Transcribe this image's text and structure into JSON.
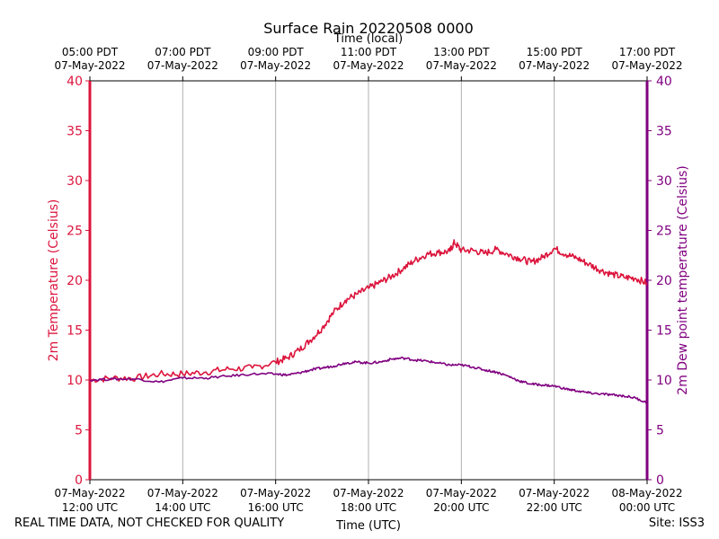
{
  "chart_data": {
    "type": "line",
    "title": "Surface Rain 20220508 0000",
    "top_axis_label": "Time (local)",
    "xlabel": "Time (UTC)",
    "ylabel_left": "2m Temperature (Celsius)",
    "ylabel_right": "2m Dew point temperature (Celsius)",
    "ylim": [
      0,
      40
    ],
    "y_ticks": [
      "0",
      "5",
      "10",
      "15",
      "20",
      "25",
      "30",
      "35",
      "40"
    ],
    "x_range_hours": [
      12,
      24
    ],
    "x_ticks_bottom": [
      {
        "hour": 12,
        "date": "07-May-2022",
        "time": "12:00 UTC"
      },
      {
        "hour": 14,
        "date": "07-May-2022",
        "time": "14:00 UTC"
      },
      {
        "hour": 16,
        "date": "07-May-2022",
        "time": "16:00 UTC"
      },
      {
        "hour": 18,
        "date": "07-May-2022",
        "time": "18:00 UTC"
      },
      {
        "hour": 20,
        "date": "07-May-2022",
        "time": "20:00 UTC"
      },
      {
        "hour": 22,
        "date": "07-May-2022",
        "time": "22:00 UTC"
      },
      {
        "hour": 24,
        "date": "08-May-2022",
        "time": "00:00 UTC"
      }
    ],
    "x_ticks_top": [
      {
        "hour": 12,
        "time": "05:00 PDT",
        "date": "07-May-2022"
      },
      {
        "hour": 14,
        "time": "07:00 PDT",
        "date": "07-May-2022"
      },
      {
        "hour": 16,
        "time": "09:00 PDT",
        "date": "07-May-2022"
      },
      {
        "hour": 18,
        "time": "11:00 PDT",
        "date": "07-May-2022"
      },
      {
        "hour": 20,
        "time": "13:00 PDT",
        "date": "07-May-2022"
      },
      {
        "hour": 22,
        "time": "15:00 PDT",
        "date": "07-May-2022"
      },
      {
        "hour": 24,
        "time": "17:00 PDT",
        "date": "07-May-2022"
      }
    ],
    "grid": true,
    "series": [
      {
        "name": "2m Temperature",
        "color": "#dc143c",
        "axis": "left",
        "x": [
          12.0,
          12.5,
          13.0,
          13.5,
          14.0,
          14.5,
          15.0,
          15.5,
          16.0,
          16.25,
          16.5,
          16.75,
          17.0,
          17.25,
          17.5,
          17.75,
          18.0,
          18.25,
          18.5,
          18.75,
          19.0,
          19.25,
          19.5,
          19.75,
          19.85,
          20.0,
          20.25,
          20.5,
          20.75,
          21.0,
          21.25,
          21.5,
          21.75,
          22.0,
          22.25,
          22.5,
          22.75,
          23.0,
          23.25,
          23.5,
          23.75,
          24.0
        ],
        "y": [
          10.0,
          10.2,
          10.2,
          10.6,
          10.6,
          10.8,
          11.1,
          11.2,
          11.8,
          12.2,
          13.0,
          14.0,
          15.2,
          16.8,
          18.0,
          18.6,
          19.2,
          19.8,
          20.4,
          21.2,
          22.0,
          22.6,
          22.8,
          22.9,
          23.8,
          23.0,
          23.0,
          22.7,
          23.1,
          22.6,
          22.2,
          21.8,
          22.3,
          23.2,
          22.6,
          22.2,
          21.6,
          21.0,
          20.6,
          20.3,
          20.2,
          19.7
        ]
      },
      {
        "name": "2m Dew point temperature",
        "color": "#800080",
        "axis": "right",
        "x": [
          12.0,
          12.5,
          13.0,
          13.5,
          14.0,
          14.5,
          15.0,
          15.5,
          16.0,
          16.25,
          16.5,
          16.75,
          17.0,
          17.25,
          17.5,
          17.75,
          18.0,
          18.25,
          18.5,
          18.75,
          19.0,
          19.25,
          19.5,
          19.75,
          20.0,
          20.25,
          20.5,
          20.75,
          21.0,
          21.25,
          21.5,
          21.75,
          22.0,
          22.25,
          22.5,
          22.75,
          23.0,
          23.25,
          23.5,
          23.75,
          24.0
        ],
        "y": [
          10.0,
          10.1,
          10.1,
          9.8,
          10.2,
          10.2,
          10.4,
          10.6,
          10.6,
          10.5,
          10.7,
          11.0,
          11.2,
          11.4,
          11.7,
          11.8,
          11.7,
          11.8,
          12.1,
          12.2,
          12.0,
          11.9,
          11.7,
          11.5,
          11.5,
          11.3,
          11.0,
          10.8,
          10.4,
          9.9,
          9.6,
          9.5,
          9.4,
          9.1,
          8.9,
          8.7,
          8.6,
          8.5,
          8.4,
          8.2,
          7.7
        ]
      }
    ]
  },
  "footer": {
    "note": "REAL TIME DATA, NOT CHECKED FOR QUALITY",
    "site": "Site: ISS3"
  }
}
